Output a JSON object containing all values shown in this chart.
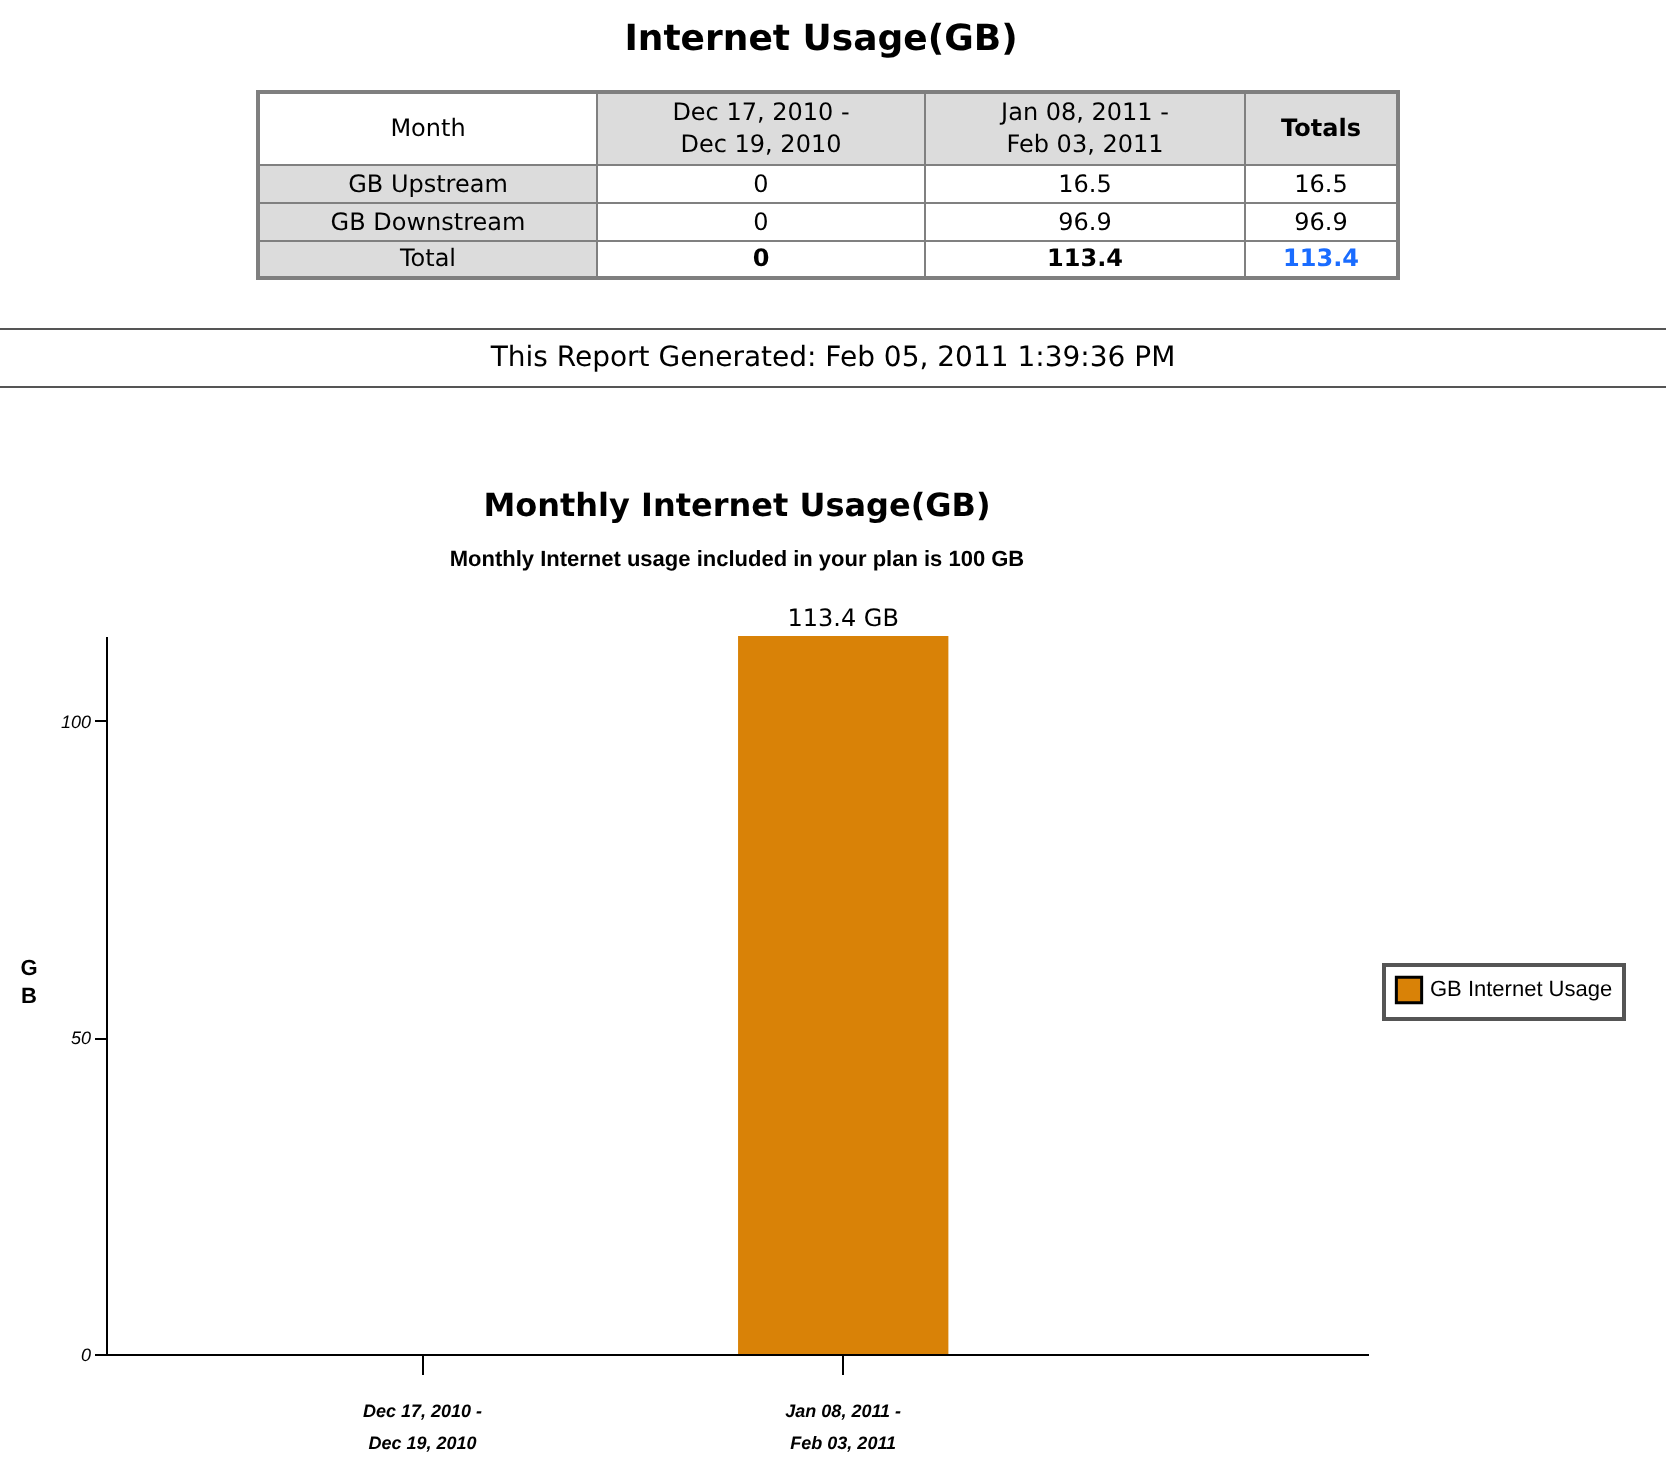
{
  "chart_data": [
    {
      "type": "heatmap",
      "title": "Internet Usage(GB)",
      "xlabel": "Month",
      "categories": [
        "Dec 17, 2010 -\nDec 19, 2010",
        "Jan 08, 2011 -\nFeb 03, 2011",
        "Totals"
      ],
      "y_categories": [
        "GB Upstream",
        "GB Downstream",
        "Total"
      ],
      "cells": [
        [
          0,
          16.5,
          16.5
        ],
        [
          0,
          96.9,
          96.9
        ],
        [
          0,
          113.4,
          113.4
        ]
      ],
      "data_labels": true,
      "annotations": [
        "This Report Generated: Feb 05, 2011 1:39:36 PM"
      ]
    },
    {
      "type": "bar",
      "title": "Monthly Internet Usage(GB)",
      "subtitle": "Monthly Internet usage included in your plan is 100 GB",
      "ylabel": "GB",
      "categories": [
        "Dec 17, 2010 -\nDec 19, 2010",
        "Jan 08, 2011 -\nFeb 03, 2011"
      ],
      "series": [
        {
          "name": "GB Internet Usage",
          "color": "#d98207",
          "values": [
            0,
            113.4
          ],
          "value_labels": [
            null,
            "113.4 GB"
          ]
        }
      ],
      "ylim": [
        0,
        113.4
      ],
      "yticks": [
        0,
        50,
        100
      ],
      "grid": false,
      "legend": "right"
    }
  ]
}
